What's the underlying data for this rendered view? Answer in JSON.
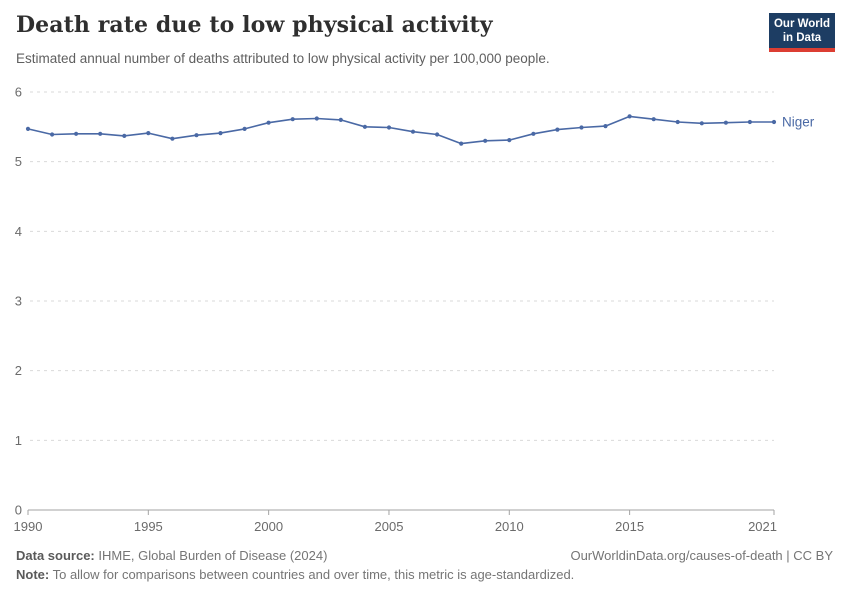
{
  "header": {
    "title": "Death rate due to low physical activity",
    "subtitle": "Estimated annual number of deaths attributed to low physical activity per 100,000 people.",
    "logo": {
      "line1": "Our World",
      "line2": "in Data",
      "bg_color": "#1d3d63",
      "bar_color": "#dc3e32"
    }
  },
  "chart_data": {
    "type": "line",
    "title": "Death rate due to low physical activity",
    "series": [
      {
        "name": "Niger",
        "x": [
          1990,
          1991,
          1992,
          1993,
          1994,
          1995,
          1996,
          1997,
          1998,
          1999,
          2000,
          2001,
          2002,
          2003,
          2004,
          2005,
          2006,
          2007,
          2008,
          2009,
          2010,
          2011,
          2012,
          2013,
          2014,
          2015,
          2016,
          2017,
          2018,
          2019,
          2020,
          2021
        ],
        "values": [
          5.47,
          5.39,
          5.4,
          5.4,
          5.37,
          5.41,
          5.33,
          5.38,
          5.41,
          5.47,
          5.56,
          5.61,
          5.62,
          5.6,
          5.5,
          5.49,
          5.43,
          5.39,
          5.26,
          5.3,
          5.31,
          5.4,
          5.46,
          5.49,
          5.51,
          5.65,
          5.61,
          5.57,
          5.55,
          5.56,
          5.57,
          5.57
        ]
      }
    ],
    "xlabel": "",
    "ylabel": "",
    "ylim": [
      0,
      6
    ],
    "yticks": [
      0,
      1,
      2,
      3,
      4,
      5,
      6
    ],
    "xticks": [
      1990,
      1995,
      2000,
      2005,
      2010,
      2015,
      2021
    ],
    "grid": true,
    "legend_position": "end-of-line",
    "line_color": "#4a69a5",
    "marker": "circle"
  },
  "footer": {
    "source_label": "Data source:",
    "source_value": " IHME, Global Burden of Disease (2024)",
    "right_text": "OurWorldinData.org/causes-of-death | CC BY",
    "note_label": "Note:",
    "note_value": " To allow for comparisons between countries and over time, this metric is age-standardized."
  }
}
